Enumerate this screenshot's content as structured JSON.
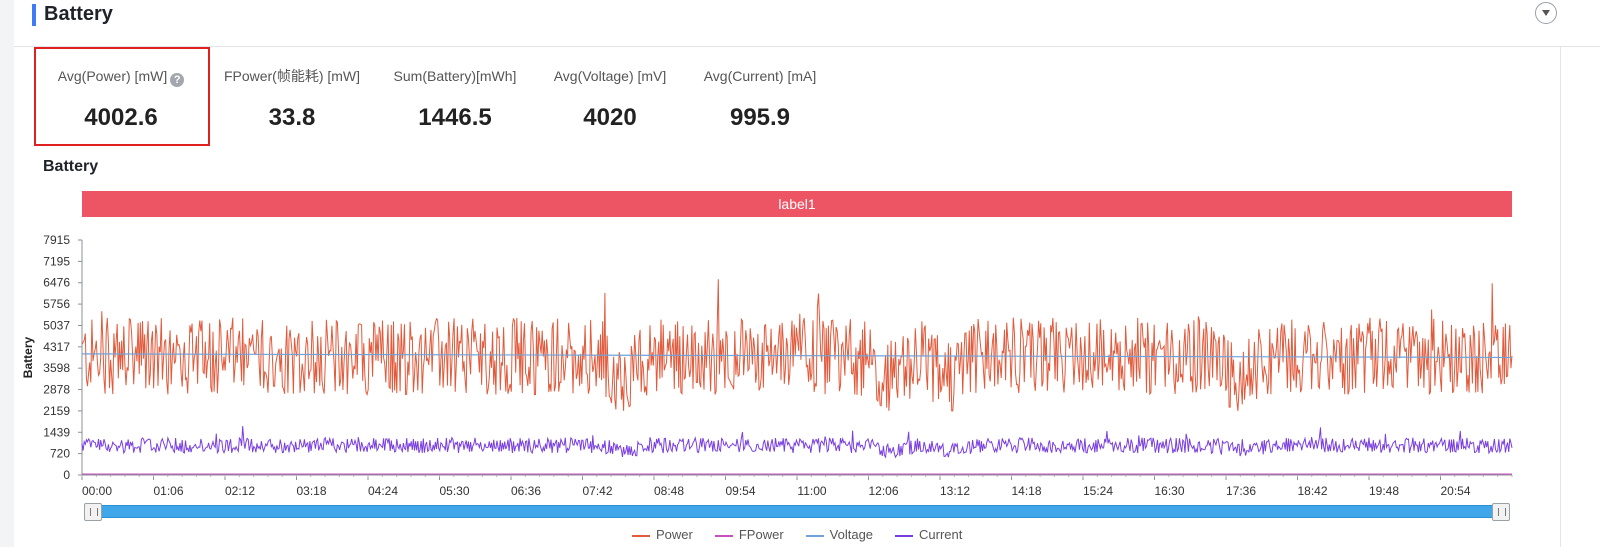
{
  "page": {
    "title": "Battery"
  },
  "metrics": [
    {
      "label": "Avg(Power) [mW]",
      "value": "4002.6",
      "help": "?"
    },
    {
      "label": "FPower(帧能耗) [mW]",
      "value": "33.8"
    },
    {
      "label": "Sum(Battery)[mWh]",
      "value": "1446.5"
    },
    {
      "label": "Avg(Voltage) [mV]",
      "value": "4020"
    },
    {
      "label": "Avg(Current) [mA]",
      "value": "995.9"
    }
  ],
  "chart_data": {
    "type": "line",
    "title": "Battery",
    "ylabel": "Battery",
    "band_label": "label1",
    "ylim": [
      0,
      7915
    ],
    "yticks": [
      0,
      720,
      1439,
      2159,
      2878,
      3598,
      4317,
      5037,
      5756,
      6476,
      7195,
      7915
    ],
    "xticks": [
      "00:00",
      "01:06",
      "02:12",
      "03:18",
      "04:24",
      "05:30",
      "06:36",
      "07:42",
      "08:48",
      "09:54",
      "11:00",
      "12:06",
      "13:12",
      "14:18",
      "15:24",
      "16:30",
      "17:36",
      "18:42",
      "19:48",
      "20:54"
    ],
    "x_start_seconds": 0,
    "x_end_seconds": 1290,
    "series": [
      {
        "name": "Power",
        "color": "#e25a3c",
        "mean": 4002.6,
        "min": 2159,
        "max": 7195
      },
      {
        "name": "FPower",
        "color": "#c84fbe",
        "mean": 33.8
      },
      {
        "name": "Voltage",
        "color": "#6fa2d9",
        "start": 4080,
        "end": 3960
      },
      {
        "name": "Current",
        "color": "#7a3fe0",
        "mean": 995.9,
        "min": 600,
        "max": 1700
      }
    ],
    "legend_position": "bottom",
    "grid": false
  }
}
